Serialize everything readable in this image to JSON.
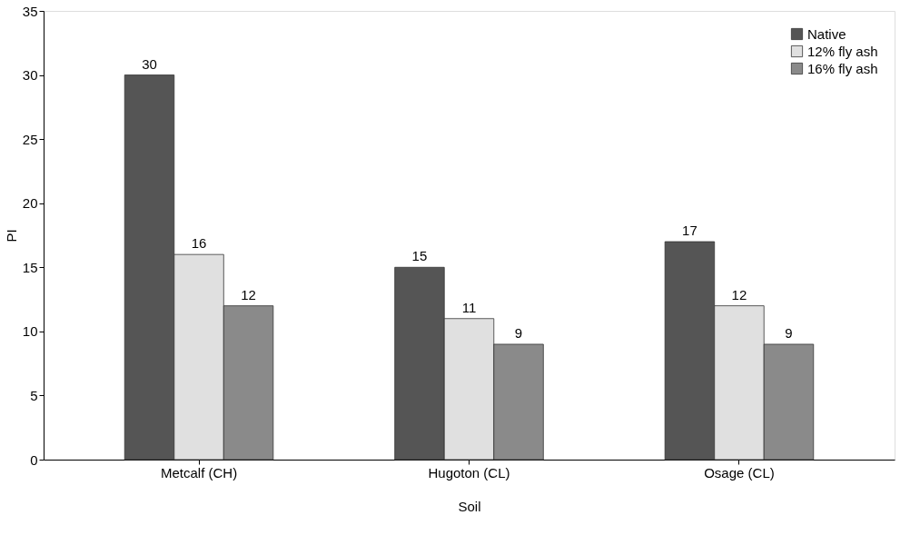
{
  "chart_data": {
    "type": "bar",
    "xlabel": "Soil",
    "ylabel": "PI",
    "categories": [
      "Metcalf (CH)",
      "Hugoton (CL)",
      "Osage (CL)"
    ],
    "series": [
      {
        "name": "Native",
        "color": "#555555",
        "values": [
          30,
          15,
          17
        ]
      },
      {
        "name": "12% fly ash",
        "color": "#e0e0e0",
        "values": [
          16,
          11,
          12
        ]
      },
      {
        "name": "16% fly ash",
        "color": "#8a8a8a",
        "values": [
          12,
          9,
          9
        ]
      }
    ],
    "ylim": [
      0,
      35
    ],
    "yticks": [
      0,
      5,
      10,
      15,
      20,
      25,
      30,
      35
    ],
    "grid": false,
    "legend": "top right",
    "data_labels": true
  }
}
